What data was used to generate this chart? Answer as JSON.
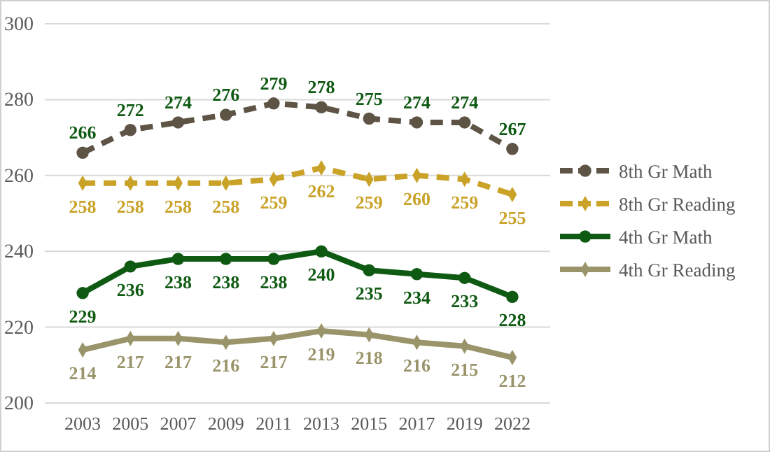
{
  "chart_data": {
    "type": "line",
    "categories": [
      "2003",
      "2005",
      "2007",
      "2009",
      "2011",
      "2013",
      "2015",
      "2017",
      "2019",
      "2022"
    ],
    "series": [
      {
        "name": "8th Gr Math",
        "color": "#5e5446",
        "marker": "circle",
        "line_style": "dashed",
        "values": [
          266,
          272,
          274,
          276,
          279,
          278,
          275,
          274,
          274,
          267
        ]
      },
      {
        "name": "8th Gr Reading",
        "color": "#c9a227",
        "marker": "diamond",
        "line_style": "dashed",
        "values": [
          258,
          258,
          258,
          258,
          259,
          262,
          259,
          260,
          259,
          255
        ]
      },
      {
        "name": "4th Gr Math",
        "color": "#0f5a12",
        "marker": "circle",
        "line_style": "solid",
        "values": [
          229,
          236,
          238,
          238,
          238,
          240,
          235,
          234,
          233,
          228
        ]
      },
      {
        "name": "4th Gr Reading",
        "color": "#99946a",
        "marker": "diamond",
        "line_style": "solid",
        "values": [
          214,
          217,
          217,
          216,
          217,
          219,
          218,
          216,
          215,
          212
        ]
      }
    ],
    "ylim": [
      200,
      300
    ],
    "yticks": [
      200,
      220,
      240,
      260,
      280,
      300
    ],
    "grid": "y",
    "legend": "right",
    "data_labels": true
  }
}
